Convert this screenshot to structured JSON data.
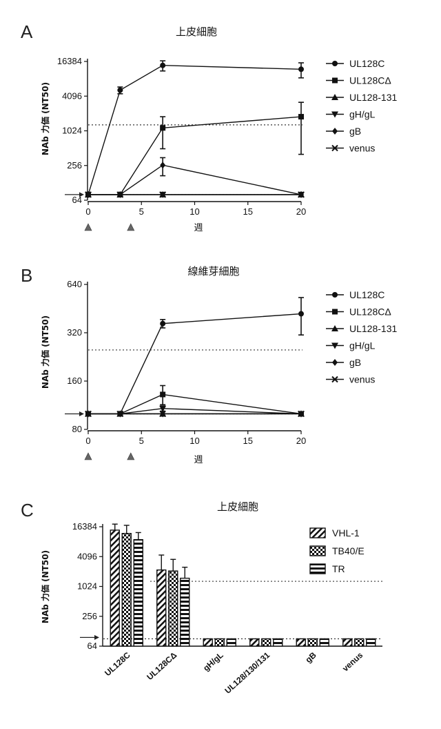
{
  "chart_data": [
    {
      "panel": "A",
      "type": "line",
      "title": "上皮細胞",
      "ylabel": "NAb 力価 (NT50)",
      "xlabel": "週",
      "ylim": [
        64,
        16384
      ],
      "yscale": "log2",
      "yticks": [
        "16384",
        "4096",
        "1024",
        "256",
        "64"
      ],
      "xlim": [
        0,
        20
      ],
      "xticks": [
        "0",
        "5",
        "10",
        "15",
        "20"
      ],
      "threshold": 1300,
      "baseline": 80,
      "immunization_weeks": [
        0,
        4
      ],
      "legend_position": "right",
      "series": [
        {
          "name": "UL128C",
          "marker": "circle",
          "x": [
            0,
            3,
            7,
            20
          ],
          "y": [
            80,
            5200,
            14000,
            12000
          ],
          "err": [
            0,
            700,
            2800,
            3500
          ]
        },
        {
          "name": "UL128CΔ",
          "marker": "square",
          "x": [
            0,
            3,
            7,
            20
          ],
          "y": [
            80,
            80,
            1150,
            1800
          ],
          "err": [
            0,
            0,
            650,
            1400
          ]
        },
        {
          "name": "UL128-131",
          "marker": "triangle-up",
          "x": [
            0,
            3,
            7,
            20
          ],
          "y": [
            80,
            80,
            80,
            80
          ],
          "err": [
            0,
            0,
            0,
            0
          ]
        },
        {
          "name": "gH/gL",
          "marker": "triangle-down",
          "x": [
            0,
            3,
            7,
            20
          ],
          "y": [
            80,
            80,
            80,
            80
          ],
          "err": [
            0,
            0,
            0,
            0
          ]
        },
        {
          "name": "gB",
          "marker": "diamond",
          "x": [
            0,
            3,
            7,
            20
          ],
          "y": [
            80,
            80,
            260,
            80
          ],
          "err": [
            0,
            0,
            90,
            0
          ]
        },
        {
          "name": "venus",
          "marker": "x",
          "x": [
            0,
            3,
            7,
            20
          ],
          "y": [
            80,
            80,
            80,
            80
          ],
          "err": [
            0,
            0,
            0,
            0
          ]
        }
      ]
    },
    {
      "panel": "B",
      "type": "line",
      "title": "線維芽細胞",
      "ylabel": "NAb 力価 (NT50)",
      "xlabel": "週",
      "ylim": [
        80,
        640
      ],
      "yscale": "log2",
      "yticks": [
        "640",
        "320",
        "160",
        "80"
      ],
      "xlim": [
        0,
        20
      ],
      "xticks": [
        "0",
        "5",
        "10",
        "15",
        "20"
      ],
      "threshold": 250,
      "baseline": 100,
      "immunization_weeks": [
        0,
        4
      ],
      "legend_position": "right",
      "series": [
        {
          "name": "UL128C",
          "marker": "circle",
          "x": [
            0,
            3,
            7,
            20
          ],
          "y": [
            100,
            100,
            365,
            420
          ],
          "err": [
            0,
            0,
            22,
            110
          ]
        },
        {
          "name": "UL128CΔ",
          "marker": "square",
          "x": [
            0,
            3,
            7,
            20
          ],
          "y": [
            100,
            100,
            132,
            100
          ],
          "err": [
            0,
            0,
            18,
            0
          ]
        },
        {
          "name": "UL128-131",
          "marker": "triangle-up",
          "x": [
            0,
            3,
            7,
            20
          ],
          "y": [
            100,
            100,
            100,
            100
          ],
          "err": [
            0,
            0,
            0,
            0
          ]
        },
        {
          "name": "gH/gL",
          "marker": "triangle-down",
          "x": [
            0,
            3,
            7,
            20
          ],
          "y": [
            100,
            100,
            108,
            100
          ],
          "err": [
            0,
            0,
            4,
            0
          ]
        },
        {
          "name": "gB",
          "marker": "diamond",
          "x": [
            0,
            3,
            7,
            20
          ],
          "y": [
            100,
            100,
            100,
            100
          ],
          "err": [
            0,
            0,
            0,
            0
          ]
        },
        {
          "name": "venus",
          "marker": "x",
          "x": [
            0,
            3,
            7,
            20
          ],
          "y": [
            100,
            100,
            100,
            100
          ],
          "err": [
            0,
            0,
            0,
            0
          ]
        }
      ]
    },
    {
      "panel": "C",
      "type": "bar",
      "title": "上皮細胞",
      "ylabel": "NAb 力価 (NT50)",
      "ylim": [
        64,
        16384
      ],
      "yscale": "log2",
      "yticks": [
        "16384",
        "4096",
        "1024",
        "256",
        "64"
      ],
      "categories": [
        "UL128C",
        "UL128CΔ",
        "gH/gL",
        "UL128/130/131",
        "gB",
        "venus"
      ],
      "threshold": 1300,
      "baseline": 90,
      "legend_position": "top-right",
      "series": [
        {
          "name": "VHL-1",
          "pattern": "diagonal",
          "values": [
            14000,
            2200,
            90,
            90,
            90,
            90
          ],
          "err": [
            4500,
            2200,
            0,
            0,
            0,
            0
          ]
        },
        {
          "name": "TB40/E",
          "pattern": "checker",
          "values": [
            12000,
            2100,
            90,
            90,
            90,
            90
          ],
          "err": [
            5500,
            1500,
            0,
            0,
            0,
            0
          ]
        },
        {
          "name": "TR",
          "pattern": "horizontal",
          "values": [
            9000,
            1500,
            90,
            90,
            90,
            90
          ],
          "err": [
            3500,
            1000,
            0,
            0,
            0,
            0
          ]
        }
      ]
    }
  ]
}
